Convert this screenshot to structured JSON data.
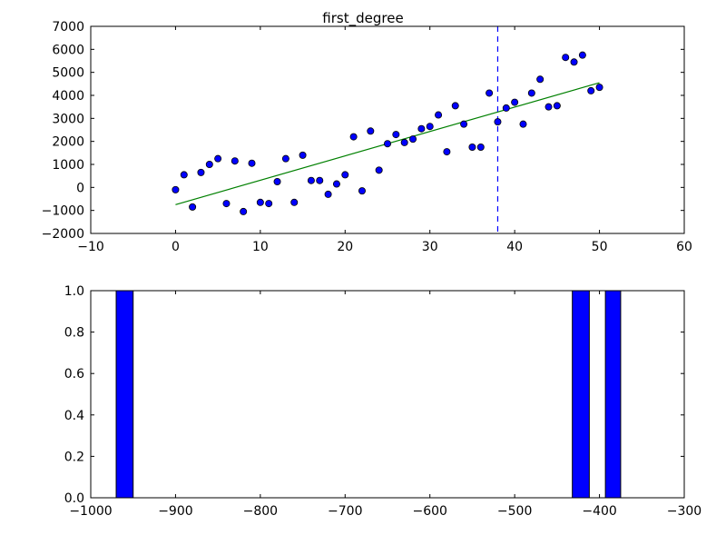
{
  "chart_data": [
    {
      "type": "scatter",
      "title": "first_degree",
      "xlabel": "",
      "ylabel": "",
      "xlim": [
        -10,
        60
      ],
      "ylim": [
        -2000,
        7000
      ],
      "xticks": [
        "−10",
        "0",
        "10",
        "20",
        "30",
        "40",
        "50",
        "60"
      ],
      "xtick_values": [
        -10,
        0,
        10,
        20,
        30,
        40,
        50,
        60
      ],
      "yticks": [
        "−2000",
        "−1000",
        "0",
        "1000",
        "2000",
        "3000",
        "4000",
        "5000",
        "6000",
        "7000"
      ],
      "ytick_values": [
        -2000,
        -1000,
        0,
        1000,
        2000,
        3000,
        4000,
        5000,
        6000,
        7000
      ],
      "grid": false,
      "points": {
        "color": "#0000ff",
        "x": [
          0,
          1,
          2,
          3,
          4,
          5,
          6,
          7,
          8,
          9,
          10,
          11,
          12,
          13,
          14,
          15,
          16,
          17,
          18,
          19,
          20,
          21,
          22,
          23,
          24,
          25,
          26,
          27,
          28,
          29,
          30,
          31,
          32,
          33,
          34,
          35,
          36,
          37,
          38,
          39,
          40,
          41,
          42,
          43,
          44,
          45,
          46,
          47,
          48,
          49,
          50
        ],
        "y": [
          -100,
          550,
          -850,
          650,
          1000,
          1250,
          -700,
          1150,
          -1050,
          1050,
          -650,
          -700,
          250,
          1250,
          -650,
          1400,
          300,
          300,
          -300,
          150,
          550,
          2200,
          -150,
          2450,
          750,
          1900,
          2300,
          1950,
          2100,
          2550,
          2650,
          3150,
          1550,
          3550,
          2750,
          1750,
          1750,
          4100,
          2850,
          3450,
          3700,
          2750,
          4100,
          4700,
          3500,
          3550,
          5650,
          5450,
          5750,
          4200,
          4350
        ]
      },
      "fit_line": {
        "color": "#008000",
        "x": [
          0,
          50
        ],
        "y": [
          -750,
          4550
        ]
      },
      "vline": {
        "x": 38,
        "style": "dashed",
        "color": "#0000ff"
      }
    },
    {
      "type": "bar",
      "title": "",
      "xlabel": "",
      "ylabel": "",
      "xlim": [
        -1000,
        -300
      ],
      "ylim": [
        0,
        1.0
      ],
      "xticks": [
        "−1000",
        "−900",
        "−800",
        "−700",
        "−600",
        "−500",
        "−400",
        "−300"
      ],
      "xtick_values": [
        -1000,
        -900,
        -800,
        -700,
        -600,
        -500,
        -400,
        -300
      ],
      "yticks": [
        "0.0",
        "0.2",
        "0.4",
        "0.6",
        "0.8",
        "1.0"
      ],
      "ytick_values": [
        0.0,
        0.2,
        0.4,
        0.6,
        0.8,
        1.0
      ],
      "grid": false,
      "bar_color": "#0000ff",
      "bars": [
        {
          "x0": -970,
          "x1": -950,
          "value": 1.0
        },
        {
          "x0": -432,
          "x1": -412,
          "value": 1.0
        },
        {
          "x0": -393,
          "x1": -375,
          "value": 1.0
        }
      ]
    }
  ]
}
